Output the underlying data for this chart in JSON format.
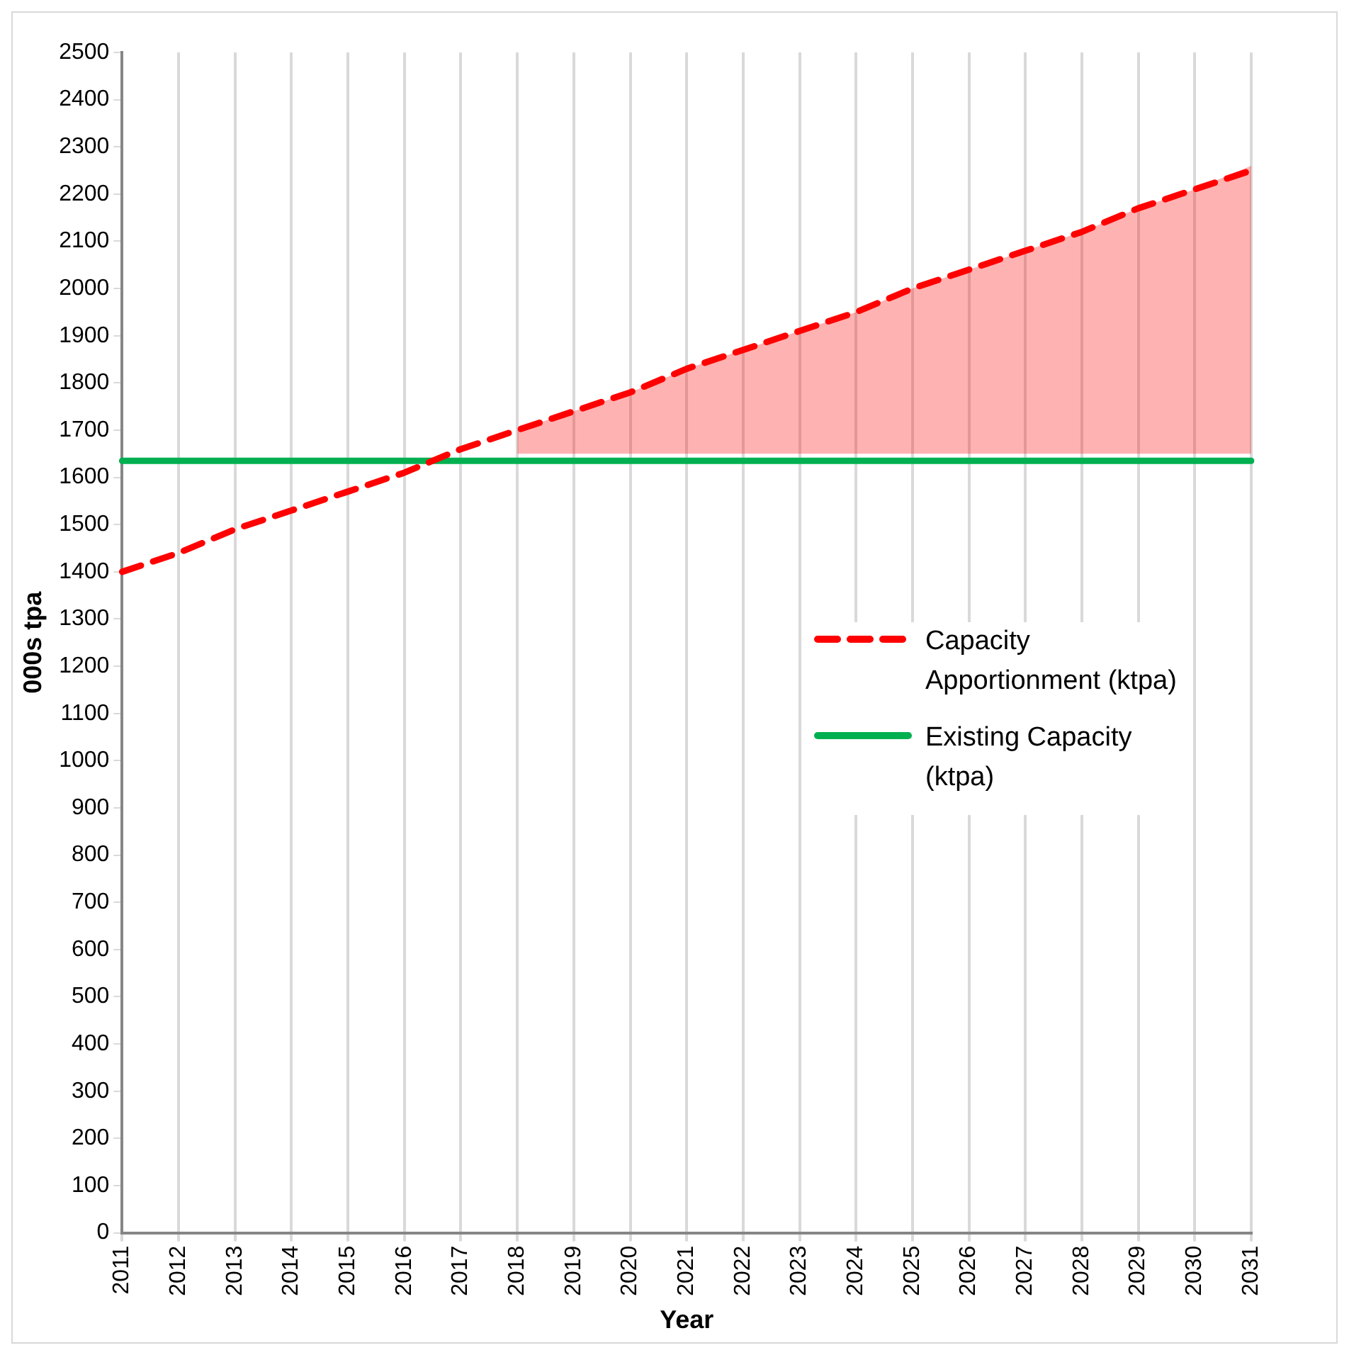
{
  "chart_data": {
    "type": "line",
    "xlabel": "Year",
    "ylabel": "000s tpa",
    "categories": [
      "2011",
      "2012",
      "2013",
      "2014",
      "2015",
      "2016",
      "2017",
      "2018",
      "2019",
      "2020",
      "2021",
      "2022",
      "2023",
      "2024",
      "2025",
      "2026",
      "2027",
      "2028",
      "2029",
      "2030",
      "2031"
    ],
    "series": [
      {
        "name": "Capacity Apportionment (ktpa)",
        "color": "#ff0000",
        "line_style": "dashed",
        "values": [
          1400,
          1440,
          1490,
          1530,
          1570,
          1610,
          1660,
          1700,
          1740,
          1780,
          1830,
          1870,
          1910,
          1950,
          2000,
          2040,
          2080,
          2120,
          2170,
          2210,
          2250
        ],
        "lower": [
          null,
          null,
          null,
          null,
          null,
          null,
          null,
          1650,
          1650,
          1650,
          1650,
          1650,
          1650,
          1650,
          1650,
          1650,
          1650,
          1650,
          1650,
          1650,
          1650
        ],
        "upper": [
          null,
          null,
          null,
          null,
          null,
          null,
          null,
          1700,
          1740,
          1780,
          1830,
          1870,
          1910,
          1950,
          2000,
          2040,
          2080,
          2120,
          2170,
          2210,
          2260
        ]
      },
      {
        "name": "Existing Capacity (ktpa)",
        "color": "#00b050",
        "line_style": "solid",
        "values": [
          1635,
          1635,
          1635,
          1635,
          1635,
          1635,
          1635,
          1635,
          1635,
          1635,
          1635,
          1635,
          1635,
          1635,
          1635,
          1635,
          1635,
          1635,
          1635,
          1635,
          1635
        ]
      }
    ],
    "ylim": [
      0,
      2500
    ],
    "yticks": [
      0,
      100,
      200,
      300,
      400,
      500,
      600,
      700,
      800,
      900,
      1000,
      1100,
      1200,
      1300,
      1400,
      1500,
      1600,
      1700,
      1800,
      1900,
      2000,
      2100,
      2200,
      2300,
      2400,
      2500
    ],
    "grid": "x",
    "legend": "right",
    "marker": "none"
  }
}
